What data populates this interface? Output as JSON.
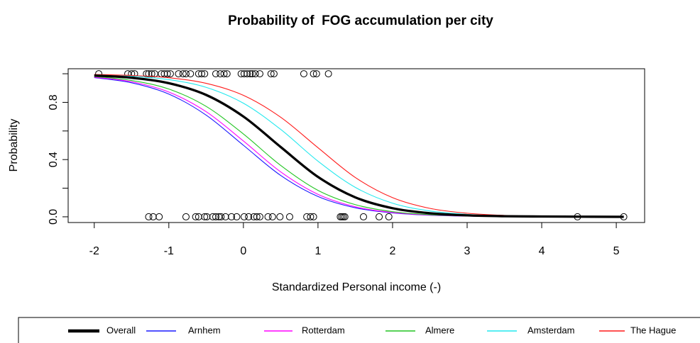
{
  "chart_data": {
    "type": "line",
    "title": "Probability of  FOG accumulation per city",
    "x_label": "Standardized Personal income (-)",
    "y_label": "Probability",
    "xlim": [
      -2.35,
      5.38
    ],
    "ylim": [
      -0.04,
      1.035
    ],
    "xticks": [
      -2,
      -1,
      0,
      1,
      2,
      3,
      4,
      5
    ],
    "yticks": [
      {
        "value": 0,
        "label": "0.0"
      },
      {
        "value": 0.4,
        "label": "0.4"
      },
      {
        "value": 0.8,
        "label": "0.8"
      }
    ],
    "yminor_ticks": [
      0.2,
      0.6,
      1.0
    ],
    "x": [
      -2,
      -1.5,
      -1,
      -0.5,
      0,
      0.5,
      1,
      1.5,
      2,
      2.5,
      3,
      3.5,
      4,
      4.5,
      5,
      5.1
    ],
    "series": [
      {
        "name": "Overall",
        "color": "#000000",
        "width": 3,
        "values": [
          0.988,
          0.972,
          0.934,
          0.852,
          0.701,
          0.488,
          0.279,
          0.136,
          0.06,
          0.025,
          0.01,
          0.004,
          0.002,
          0.001,
          0.0,
          0.0
        ]
      },
      {
        "name": "Arnhem",
        "color": "#1a1aff",
        "width": 1,
        "values": [
          0.973,
          0.937,
          0.858,
          0.711,
          0.5,
          0.289,
          0.142,
          0.063,
          0.027,
          0.011,
          0.005,
          0.002,
          0.001,
          0.0,
          0.0,
          0.0
        ]
      },
      {
        "name": "Rotterdam",
        "color": "#ff00ff",
        "width": 1,
        "values": [
          0.976,
          0.944,
          0.872,
          0.735,
          0.53,
          0.314,
          0.157,
          0.07,
          0.03,
          0.012,
          0.005,
          0.002,
          0.001,
          0.0,
          0.0,
          0.0
        ]
      },
      {
        "name": "Almere",
        "color": "#22c422",
        "width": 1,
        "values": [
          0.981,
          0.953,
          0.893,
          0.772,
          0.579,
          0.359,
          0.185,
          0.085,
          0.036,
          0.015,
          0.006,
          0.003,
          0.001,
          0.0,
          0.0,
          0.0
        ]
      },
      {
        "name": "Amsterdam",
        "color": "#22e8ee",
        "width": 1,
        "values": [
          0.993,
          0.983,
          0.959,
          0.905,
          0.794,
          0.611,
          0.389,
          0.206,
          0.095,
          0.041,
          0.017,
          0.007,
          0.003,
          0.001,
          0.0,
          0.0
        ]
      },
      {
        "name": "The Hague",
        "color": "#ff1a1a",
        "width": 1,
        "values": [
          0.995,
          0.988,
          0.972,
          0.933,
          0.849,
          0.696,
          0.483,
          0.275,
          0.134,
          0.059,
          0.025,
          0.01,
          0.004,
          0.002,
          0.001,
          0.0
        ]
      }
    ],
    "points": {
      "x": [
        -1.94,
        -1.55,
        -1.5,
        -1.46,
        -1.3,
        -1.27,
        -1.23,
        -1.19,
        -1.1,
        -1.06,
        -1.02,
        -0.98,
        -0.87,
        -0.81,
        -0.77,
        -0.71,
        -0.6,
        -0.56,
        -0.52,
        -0.37,
        -0.31,
        -0.26,
        -0.22,
        -0.03,
        0.01,
        0.05,
        0.09,
        0.12,
        0.16,
        0.22,
        0.37,
        0.41,
        0.81,
        0.94,
        0.98,
        1.14,
        -1.27,
        -1.21,
        -1.13,
        -0.77,
        -0.64,
        -0.6,
        -0.52,
        -0.49,
        -0.41,
        -0.37,
        -0.33,
        -0.3,
        -0.24,
        -0.16,
        -0.09,
        0.01,
        0.07,
        0.14,
        0.18,
        0.22,
        0.33,
        0.39,
        0.49,
        0.62,
        0.85,
        0.9,
        0.94,
        1.3,
        1.32,
        1.34,
        1.36,
        1.61,
        1.82,
        1.95,
        4.48,
        5.1
      ],
      "y": [
        1,
        1,
        1,
        1,
        1,
        1,
        1,
        1,
        1,
        1,
        1,
        1,
        1,
        1,
        1,
        1,
        1,
        1,
        1,
        1,
        1,
        1,
        1,
        1,
        1,
        1,
        1,
        1,
        1,
        1,
        1,
        1,
        1,
        1,
        1,
        1,
        0,
        0,
        0,
        0,
        0,
        0,
        0,
        0,
        0,
        0,
        0,
        0,
        0,
        0,
        0,
        0,
        0,
        0,
        0,
        0,
        0,
        0,
        0,
        0,
        0,
        0,
        0,
        0,
        0,
        0,
        0,
        0,
        0,
        0,
        0,
        0
      ]
    }
  }
}
